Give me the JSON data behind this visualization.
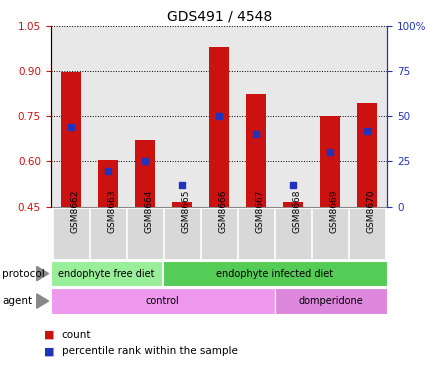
{
  "title": "GDS491 / 4548",
  "samples": [
    "GSM8662",
    "GSM8663",
    "GSM8664",
    "GSM8665",
    "GSM8666",
    "GSM8667",
    "GSM8668",
    "GSM8669",
    "GSM8670"
  ],
  "count_values": [
    0.895,
    0.605,
    0.67,
    0.465,
    0.98,
    0.825,
    0.465,
    0.75,
    0.795
  ],
  "percentile_values": [
    44,
    20,
    25,
    12,
    50,
    40,
    12,
    30,
    42
  ],
  "ylim_left": [
    0.45,
    1.05
  ],
  "ylim_right": [
    0,
    100
  ],
  "yticks_left": [
    0.45,
    0.6,
    0.75,
    0.9,
    1.05
  ],
  "yticks_right": [
    0,
    25,
    50,
    75,
    100
  ],
  "bar_color": "#cc1111",
  "dot_color": "#2233bb",
  "bar_bottom": 0.45,
  "protocol_groups": [
    {
      "label": "endophyte free diet",
      "start": 0,
      "end": 3,
      "color": "#99ee99"
    },
    {
      "label": "endophyte infected diet",
      "start": 3,
      "end": 9,
      "color": "#55cc55"
    }
  ],
  "agent_groups": [
    {
      "label": "control",
      "start": 0,
      "end": 6,
      "color": "#ee99ee"
    },
    {
      "label": "domperidone",
      "start": 6,
      "end": 9,
      "color": "#dd88dd"
    }
  ],
  "tick_label_color_left": "#cc1111",
  "tick_label_color_right": "#2233bb",
  "bar_width": 0.55,
  "dot_size": 18,
  "plot_bg": "#e8e8e8",
  "xtick_bg": "#d8d8d8"
}
